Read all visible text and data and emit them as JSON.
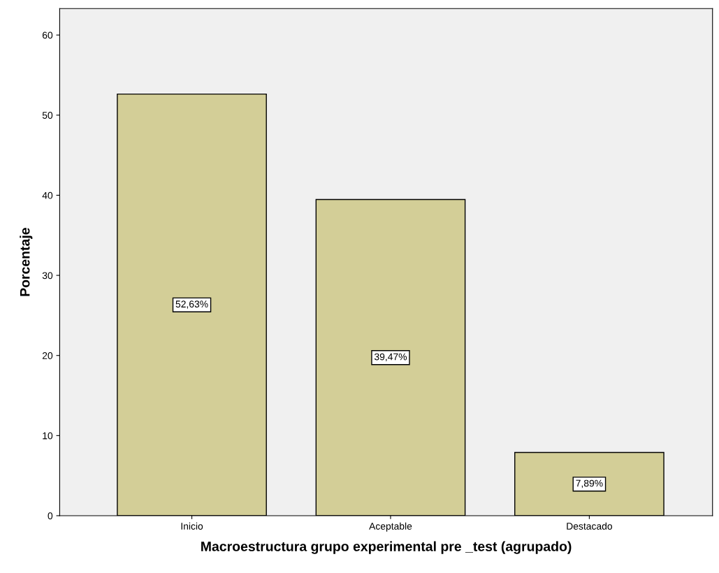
{
  "chart_data": {
    "type": "bar",
    "xlabel": "Macroestructura grupo experimental pre _test (agrupado)",
    "ylabel": "Porcentaje",
    "categories": [
      "Inicio",
      "Aceptable",
      "Destacado"
    ],
    "values": [
      52.63,
      39.47,
      7.89
    ],
    "value_labels": [
      "52,63%",
      "39,47%",
      "7,89%"
    ],
    "color": "#d3ce97",
    "ylim": [
      0,
      63.3
    ],
    "yticks": [
      0,
      10,
      20,
      30,
      40,
      50,
      60
    ],
    "grid": false,
    "legend": false
  }
}
